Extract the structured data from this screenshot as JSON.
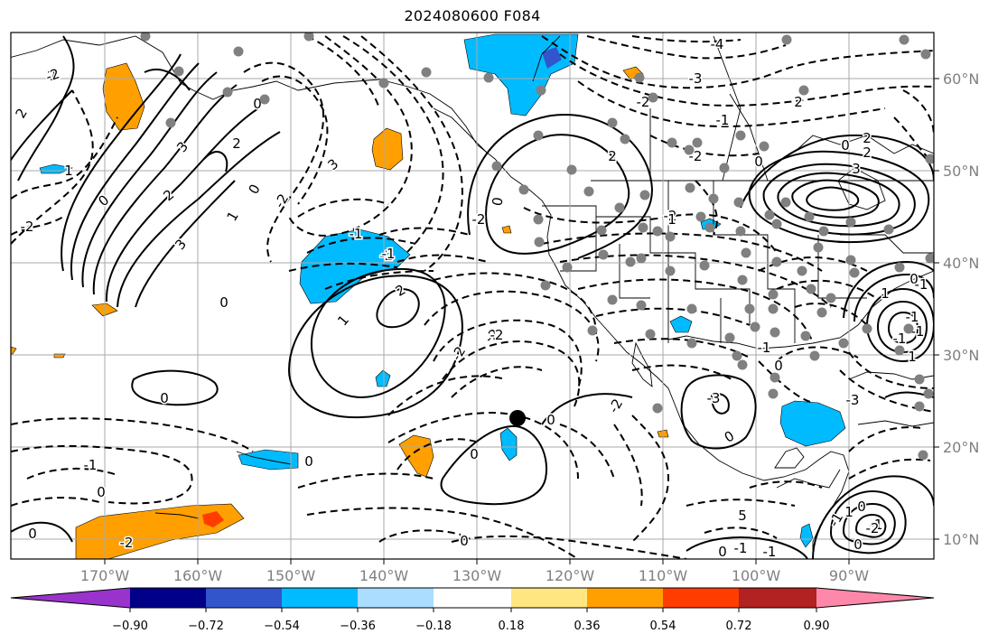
{
  "title": "2024080600 F084",
  "map": {
    "lon_ticks": [
      "170°W",
      "160°W",
      "150°W",
      "140°W",
      "130°W",
      "120°W",
      "110°W",
      "100°W",
      "90°W"
    ],
    "lat_ticks": [
      "60°N",
      "50°N",
      "40°N",
      "30°N",
      "20°N",
      "10°N"
    ],
    "contour_labels": [
      "2",
      "2",
      "1",
      "0",
      "3",
      "2",
      "0",
      "3",
      "1",
      "0",
      "-2",
      "0",
      "-2",
      "3",
      "-1",
      "-2",
      "2",
      "-2",
      "-2",
      "1",
      "2",
      "0",
      "2",
      "0",
      "0",
      "0",
      "-2",
      "-2",
      "-2",
      "-1",
      "0",
      "-2",
      "0",
      "0",
      "0",
      "-3",
      "-2",
      "2",
      "-1",
      "0",
      "-1",
      "0",
      "-3",
      "-3",
      "-1",
      "-1",
      "0",
      "-4",
      "-2",
      "-2",
      "-1",
      "0",
      "-1",
      "-1",
      "0",
      "-1",
      "-1",
      "0",
      "2",
      "2",
      "3",
      "5",
      "1",
      "1",
      "0",
      "0",
      "-1",
      "-2",
      "1",
      "1",
      "-1",
      "-2"
    ]
  },
  "colorbar": {
    "labels": [
      "−0.90",
      "−0.72",
      "−0.54",
      "−0.36",
      "−0.18",
      "0.18",
      "0.36",
      "0.54",
      "0.72",
      "0.90"
    ],
    "colors": [
      "#9933cc",
      "#000088",
      "#3355cc",
      "#00bbff",
      "#aaddff",
      "#ffffff",
      "#ffe680",
      "#ffa000",
      "#ff3d00",
      "#b22222",
      "#ff88aa"
    ]
  }
}
